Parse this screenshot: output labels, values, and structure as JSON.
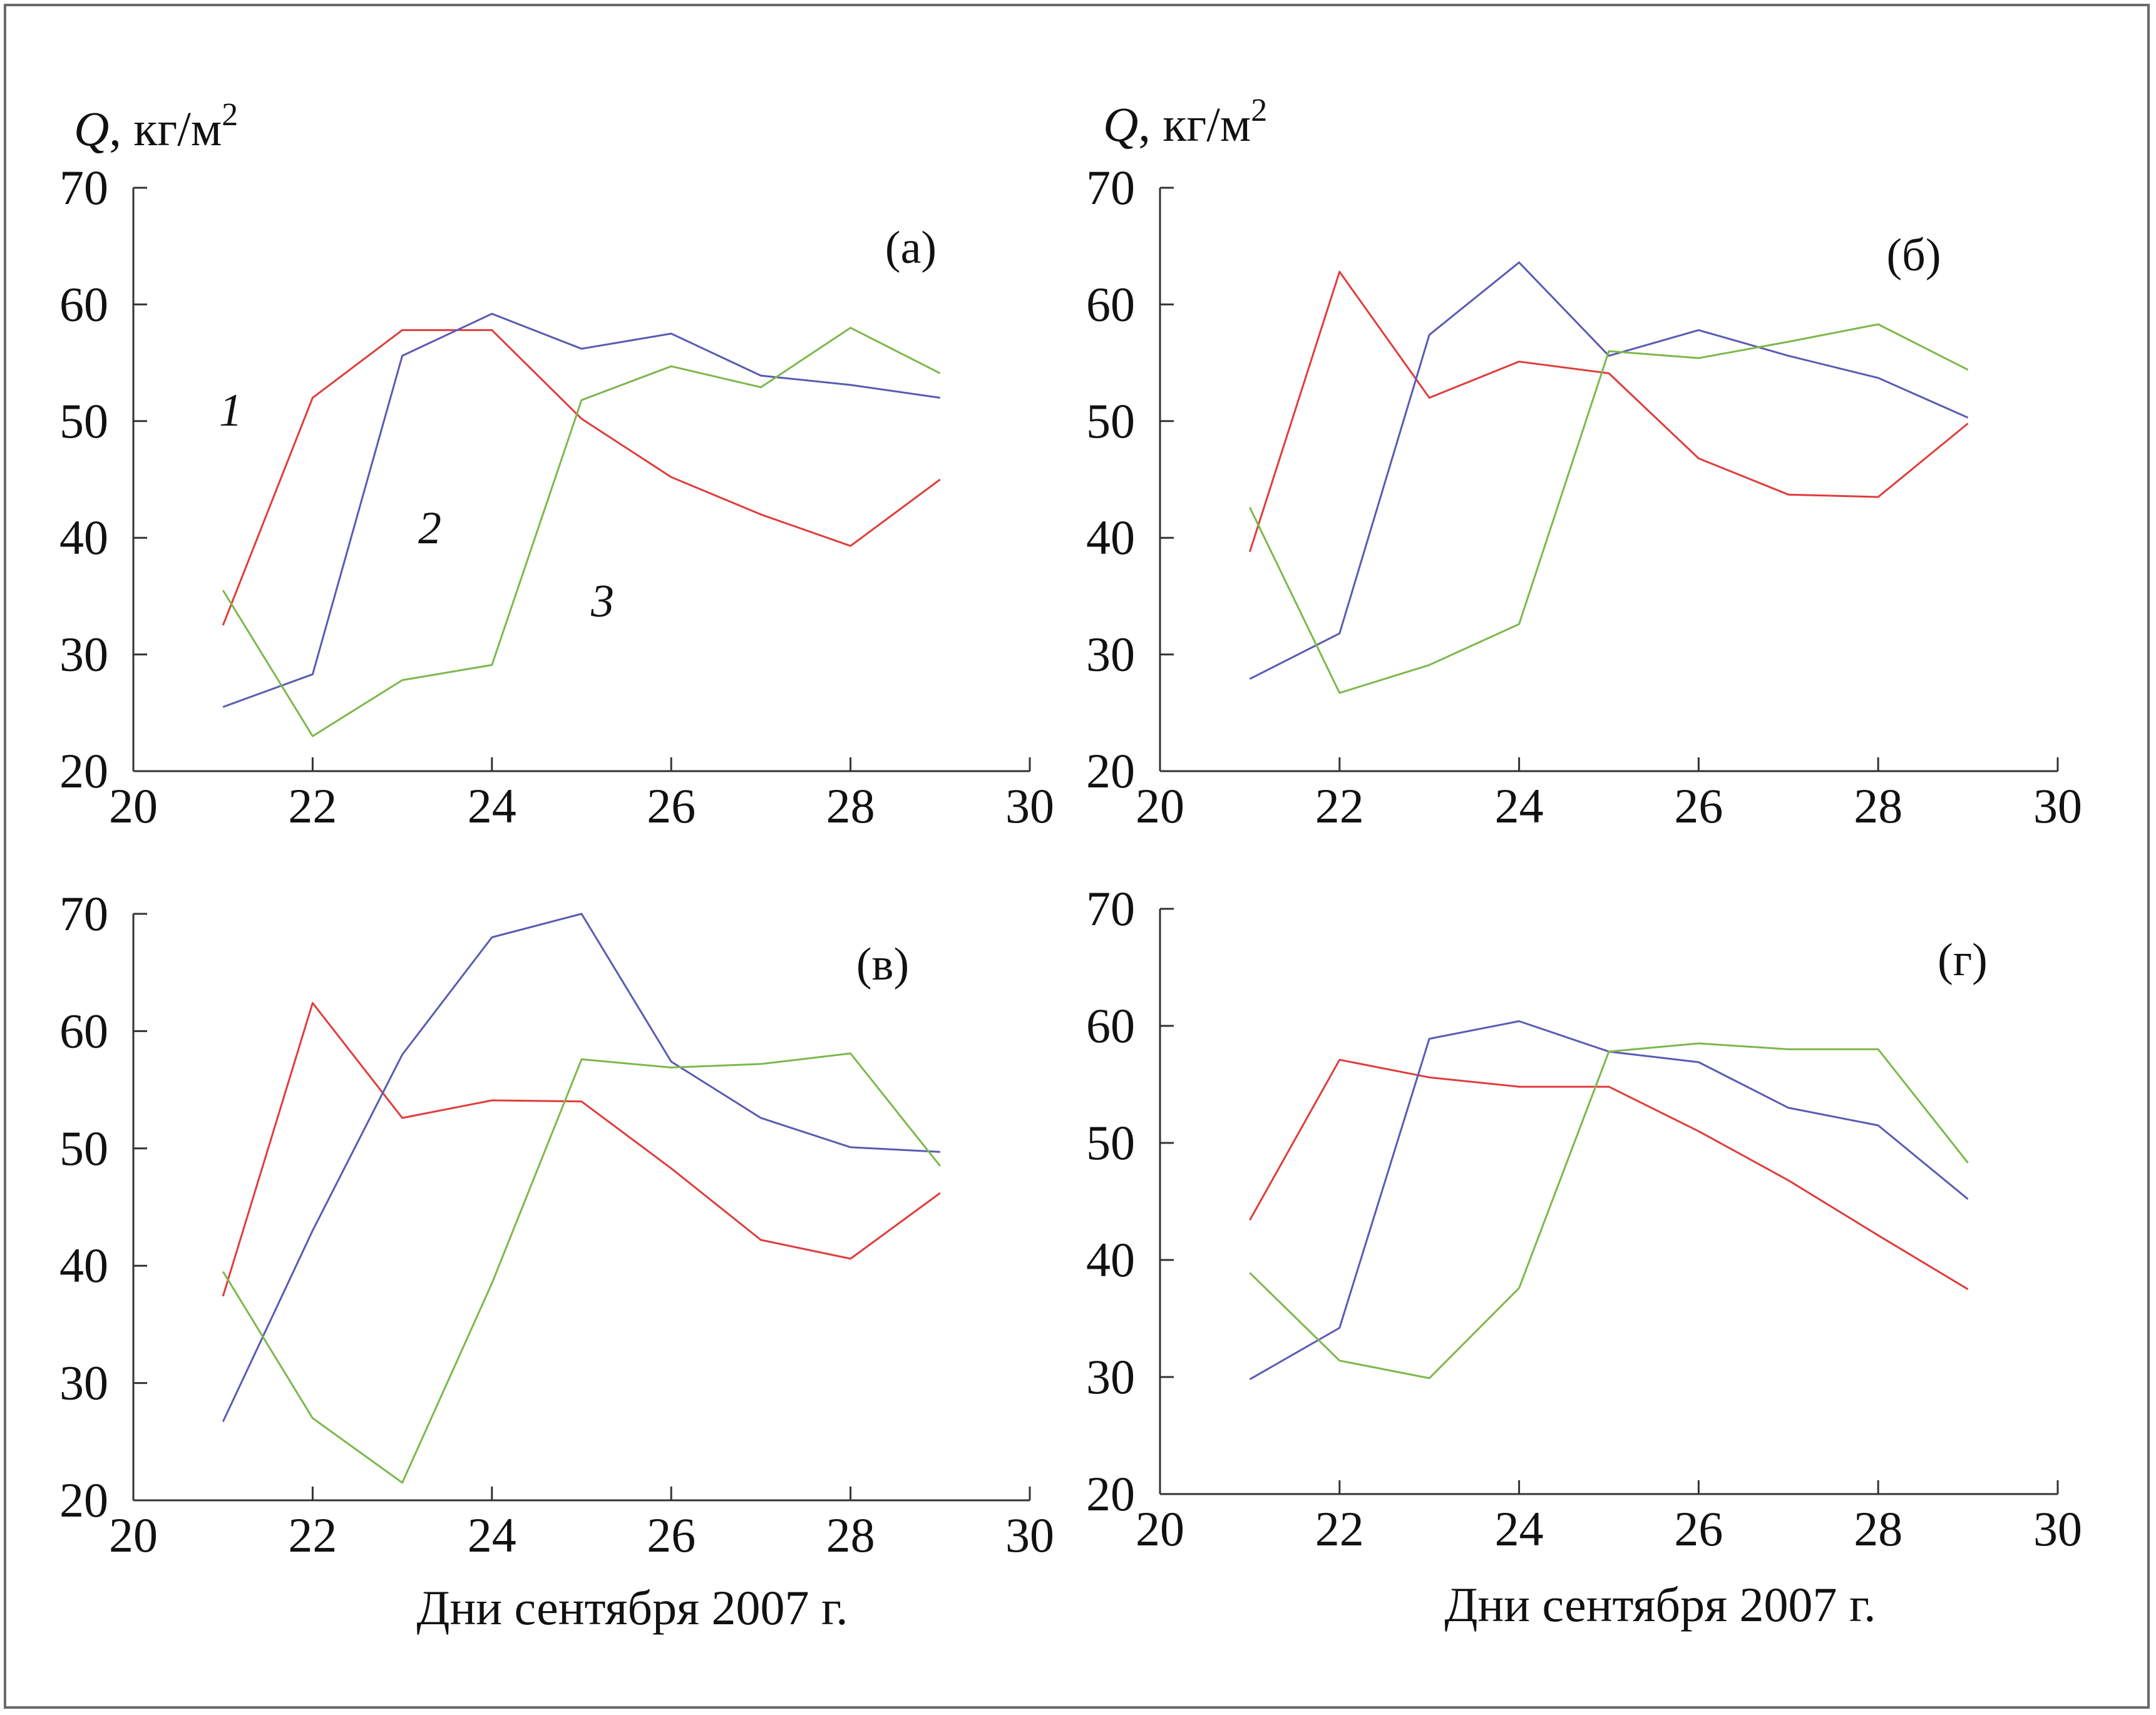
{
  "figure": {
    "y_axis_label": {
      "var": "Q",
      "units": ", кг/м",
      "exp": "2"
    },
    "x_axis_label": "Дни сентября 2007 г.",
    "colors": {
      "1": "#e03c3c",
      "2": "#5a5ab4",
      "3": "#7cb84a"
    }
  },
  "chart_data": [
    {
      "type": "line",
      "panel_label": "(а)",
      "xlim": [
        20,
        30
      ],
      "ylim": [
        20,
        70
      ],
      "xticks": [
        "20",
        "22",
        "24",
        "26",
        "28",
        "30"
      ],
      "yticks": [
        "20",
        "30",
        "40",
        "50",
        "60",
        "70"
      ],
      "series": [
        {
          "name": "1",
          "label": "1",
          "x": [
            21,
            22,
            23,
            24,
            25,
            26,
            27,
            28,
            29
          ],
          "y": [
            32.5,
            52,
            57.8,
            57.8,
            50.2,
            45.2,
            42,
            39.3,
            45
          ]
        },
        {
          "name": "2",
          "label": "2",
          "x": [
            21,
            22,
            23,
            24,
            25,
            26,
            27,
            28,
            29
          ],
          "y": [
            25.5,
            28.3,
            55.6,
            59.2,
            56.2,
            57.5,
            53.9,
            53.1,
            52
          ]
        },
        {
          "name": "3",
          "label": "3",
          "x": [
            21,
            22,
            23,
            24,
            25,
            26,
            27,
            28,
            29
          ],
          "y": [
            35.5,
            23,
            27.8,
            29.1,
            51.8,
            54.7,
            52.9,
            58,
            54.1
          ]
        }
      ]
    },
    {
      "type": "line",
      "panel_label": "(б)",
      "xlim": [
        20,
        30
      ],
      "ylim": [
        20,
        70
      ],
      "xticks": [
        "20",
        "22",
        "24",
        "26",
        "28",
        "30"
      ],
      "yticks": [
        "20",
        "30",
        "40",
        "50",
        "60",
        "70"
      ],
      "series": [
        {
          "name": "1",
          "x": [
            21,
            22,
            23,
            24,
            25,
            26,
            27,
            28,
            29
          ],
          "y": [
            38.8,
            62.8,
            52,
            55.1,
            54.1,
            46.8,
            43.7,
            43.5,
            49.8
          ]
        },
        {
          "name": "2",
          "x": [
            21,
            22,
            23,
            24,
            25,
            26,
            27,
            28,
            29
          ],
          "y": [
            27.9,
            31.8,
            57.4,
            63.6,
            55.6,
            57.8,
            55.6,
            53.7,
            50.3
          ]
        },
        {
          "name": "3",
          "x": [
            21,
            22,
            23,
            24,
            25,
            26,
            27,
            28,
            29
          ],
          "y": [
            42.6,
            26.7,
            29.1,
            32.6,
            56,
            55.4,
            56.8,
            58.3,
            54.4
          ]
        }
      ]
    },
    {
      "type": "line",
      "panel_label": "(в)",
      "xlim": [
        20,
        30
      ],
      "ylim": [
        20,
        70
      ],
      "xticks": [
        "20",
        "22",
        "24",
        "26",
        "28",
        "30"
      ],
      "yticks": [
        "20",
        "30",
        "40",
        "50",
        "60",
        "70"
      ],
      "series": [
        {
          "name": "1",
          "x": [
            21,
            22,
            23,
            24,
            25,
            26,
            27,
            28,
            29
          ],
          "y": [
            37.4,
            62.4,
            52.6,
            54.1,
            54,
            48.3,
            42.2,
            40.6,
            46.2
          ]
        },
        {
          "name": "2",
          "x": [
            21,
            22,
            23,
            24,
            25,
            26,
            27,
            28,
            29
          ],
          "y": [
            26.7,
            43,
            58,
            68,
            70,
            57.4,
            52.6,
            50.1,
            49.7
          ]
        },
        {
          "name": "3",
          "x": [
            21,
            22,
            23,
            24,
            25,
            26,
            27,
            28,
            29
          ],
          "y": [
            39.5,
            27,
            21.5,
            38.5,
            57.6,
            56.9,
            57.2,
            58.1,
            48.5
          ]
        }
      ]
    },
    {
      "type": "line",
      "panel_label": "(г)",
      "xlim": [
        20,
        30
      ],
      "ylim": [
        20,
        70
      ],
      "xticks": [
        "20",
        "22",
        "24",
        "26",
        "28",
        "30"
      ],
      "yticks": [
        "20",
        "30",
        "40",
        "50",
        "60",
        "70"
      ],
      "series": [
        {
          "name": "1",
          "x": [
            21,
            22,
            23,
            24,
            25,
            26,
            27,
            28,
            29
          ],
          "y": [
            43.4,
            57.1,
            55.6,
            54.8,
            54.8,
            51,
            46.8,
            42.1,
            37.5
          ]
        },
        {
          "name": "2",
          "x": [
            21,
            22,
            23,
            24,
            25,
            26,
            27,
            28,
            29
          ],
          "y": [
            29.8,
            34.2,
            58.9,
            60.4,
            57.8,
            56.9,
            53,
            51.5,
            45.2
          ]
        },
        {
          "name": "3",
          "x": [
            21,
            22,
            23,
            24,
            25,
            26,
            27,
            28,
            29
          ],
          "y": [
            38.9,
            31.4,
            29.9,
            37.6,
            57.8,
            58.5,
            58,
            58,
            48.3
          ]
        }
      ]
    }
  ]
}
